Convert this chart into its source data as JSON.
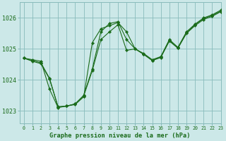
{
  "bg_color": "#cce8e8",
  "grid_color": "#88bbbb",
  "line_color": "#1a6b1a",
  "text_color": "#1a6b1a",
  "xlabel": "Graphe pression niveau de la mer (hPa)",
  "xlim": [
    -0.5,
    23
  ],
  "ylim": [
    1022.6,
    1026.5
  ],
  "yticks": [
    1023,
    1024,
    1025,
    1026
  ],
  "xticks": [
    0,
    1,
    2,
    3,
    4,
    5,
    6,
    7,
    8,
    9,
    10,
    11,
    12,
    13,
    14,
    15,
    16,
    17,
    18,
    19,
    20,
    21,
    22,
    23
  ],
  "series": [
    {
      "x": [
        0,
        1,
        2,
        3,
        4,
        5,
        6,
        7,
        8,
        9,
        10,
        11,
        12,
        13,
        14,
        15,
        16,
        17,
        18,
        19,
        20,
        21,
        22,
        23
      ],
      "y": [
        1024.7,
        1024.65,
        1024.6,
        1023.7,
        1023.1,
        1023.15,
        1023.2,
        1023.45,
        1025.2,
        1025.65,
        1025.75,
        1025.85,
        1025.55,
        1025.0,
        1024.85,
        1024.65,
        1024.75,
        1025.3,
        1025.05,
        1025.55,
        1025.8,
        1026.0,
        1026.1,
        1026.25
      ]
    },
    {
      "x": [
        0,
        1,
        2,
        3,
        4,
        5,
        6,
        7,
        8,
        9,
        10,
        11,
        12,
        13,
        14,
        15,
        16,
        17,
        18,
        19,
        20,
        21,
        22,
        23
      ],
      "y": [
        1024.7,
        1024.62,
        1024.55,
        1024.05,
        1023.12,
        1023.15,
        1023.22,
        1023.5,
        1024.35,
        1025.55,
        1025.82,
        1025.88,
        1025.3,
        1025.0,
        1024.83,
        1024.63,
        1024.73,
        1025.28,
        1025.03,
        1025.52,
        1025.78,
        1025.98,
        1026.08,
        1026.22
      ]
    },
    {
      "x": [
        0,
        1,
        2,
        3,
        4,
        5,
        6,
        7,
        8,
        9,
        10,
        11,
        12,
        13,
        14,
        15,
        16,
        17,
        18,
        19,
        20,
        21,
        22,
        23
      ],
      "y": [
        1024.7,
        1024.6,
        1024.52,
        1024.03,
        1023.13,
        1023.15,
        1023.22,
        1023.48,
        1024.3,
        1025.3,
        1025.55,
        1025.78,
        1024.95,
        1025.0,
        1024.82,
        1024.62,
        1024.72,
        1025.25,
        1025.02,
        1025.5,
        1025.75,
        1025.95,
        1026.05,
        1026.2
      ]
    }
  ]
}
